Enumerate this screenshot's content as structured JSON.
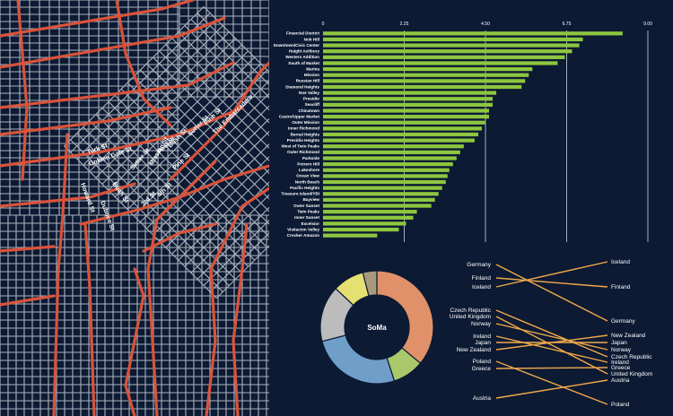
{
  "map": {
    "street_labels": [
      {
        "text": "Turk St",
        "x": 98,
        "y": 172,
        "rot": -20
      },
      {
        "text": "Golden Gate St",
        "x": 100,
        "y": 185,
        "rot": -20
      },
      {
        "text": "Howard St",
        "x": 90,
        "y": 205,
        "rot": 70
      },
      {
        "text": "Sutter St",
        "x": 148,
        "y": 190,
        "rot": -50
      },
      {
        "text": "Bush St",
        "x": 125,
        "y": 205,
        "rot": 55
      },
      {
        "text": "Mission St",
        "x": 170,
        "y": 185,
        "rot": -60
      },
      {
        "text": "Post St",
        "x": 178,
        "y": 172,
        "rot": -45
      },
      {
        "text": "Sutter St",
        "x": 212,
        "y": 152,
        "rot": -45
      },
      {
        "text": "Pine St",
        "x": 195,
        "y": 190,
        "rot": -45
      },
      {
        "text": "Bush St",
        "x": 190,
        "y": 165,
        "rot": -45
      },
      {
        "text": "3rd St",
        "x": 160,
        "y": 230,
        "rot": -45
      },
      {
        "text": "4th St",
        "x": 178,
        "y": 220,
        "rot": -45
      },
      {
        "text": "Pine St",
        "x": 230,
        "y": 140,
        "rot": -45
      },
      {
        "text": "The Embarcadero",
        "x": 240,
        "y": 150,
        "rot": -45
      },
      {
        "text": "Duboce St",
        "x": 112,
        "y": 225,
        "rot": 70
      }
    ]
  },
  "chart_data": [
    {
      "type": "bar",
      "orientation": "horizontal",
      "xlim": [
        0,
        9
      ],
      "x_ticks": [
        "0",
        "2.25",
        "4.50",
        "6.75",
        "9.00"
      ],
      "bar_color": "#8dc63f",
      "categories": [
        "Financial District",
        "Nob Hill",
        "Downtown/Civic Center",
        "Haight Ashbury",
        "Western Addition",
        "South of Market",
        "Marina",
        "Mission",
        "Russian Hill",
        "Diamond Heights",
        "Noe Valley",
        "Presidio",
        "Seacliff",
        "Chinatown",
        "Castro/Upper Market",
        "Outer Mission",
        "Inner Richmond",
        "Bernal Heights",
        "Presidio Heights",
        "West of Twin Peaks",
        "Outer Richmond",
        "Parkside",
        "Potrero Hill",
        "Lakeshore",
        "Ocean View",
        "North Beach",
        "Pacific Heights",
        "Treasure Island/YBI",
        "Bayview",
        "Outer Sunset",
        "Twin Peaks",
        "Inner Sunset",
        "Excelsior",
        "Visitacion Valley",
        "Crocker Amazon"
      ],
      "values": [
        8.3,
        7.2,
        7.1,
        6.9,
        6.7,
        6.5,
        5.8,
        5.7,
        5.6,
        5.5,
        4.8,
        4.7,
        4.7,
        4.6,
        4.6,
        4.5,
        4.4,
        4.3,
        4.2,
        3.9,
        3.8,
        3.7,
        3.6,
        3.5,
        3.45,
        3.4,
        3.3,
        3.2,
        3.1,
        3.0,
        2.6,
        2.5,
        2.3,
        2.1,
        1.5
      ]
    },
    {
      "type": "pie",
      "center_label": "SoMa",
      "slices": [
        {
          "color": "#e0916a",
          "value": 36
        },
        {
          "color": "#a8c86a",
          "value": 9
        },
        {
          "color": "#6f9fc9",
          "value": 26
        },
        {
          "color": "#bcbcbc",
          "value": 16
        },
        {
          "color": "#e4e072",
          "value": 9
        },
        {
          "color": "#a89a7c",
          "value": 4
        }
      ]
    },
    {
      "type": "slope",
      "line_color": "#f0a94a",
      "left": [
        "Germany",
        "Finland",
        "Iceland",
        "Czech Republic",
        "United Kingdom",
        "Norway",
        "Ireland",
        "Japan",
        "New Zealand",
        "Poland",
        "Greece",
        "Austria"
      ],
      "right": [
        "Iceland",
        "Finland",
        "Germany",
        "New Zealand",
        "Japan",
        "Norway",
        "Czech Republic",
        "Ireland",
        "Greece",
        "United Kingdom",
        "Austria",
        "Poland"
      ]
    }
  ]
}
